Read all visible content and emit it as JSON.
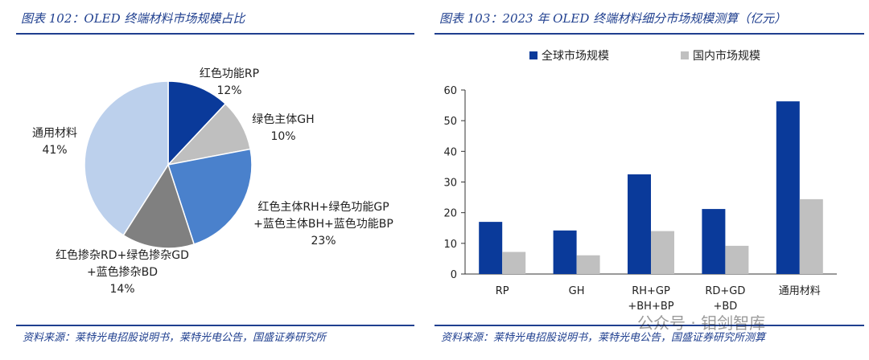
{
  "left": {
    "title": "图表 102：OLED 终端材料市场规模占比",
    "source": "资料来源：莱特光电招股说明书，莱特光电公告，国盛证券研究所"
  },
  "right": {
    "title": "图表 103：2023 年 OLED 终端材料细分市场规模测算（亿元）",
    "source": "资料来源：莱特光电招股说明书，莱特光电公告，国盛证券研究所测算"
  },
  "watermark": "公众号 · 钼剑智库",
  "chart_data": [
    {
      "type": "pie",
      "title": "OLED 终端材料市场规模占比",
      "slices": [
        {
          "label_lines": [
            "红色功能RP"
          ],
          "value": 12,
          "value_label": "12%",
          "color": "#0a3a9a"
        },
        {
          "label_lines": [
            "绿色主体GH"
          ],
          "value": 10,
          "value_label": "10%",
          "color": "#bfbfbf"
        },
        {
          "label_lines": [
            "红色主体RH+绿色功能GP",
            "+蓝色主体BH+蓝色功能BP"
          ],
          "value": 23,
          "value_label": "23%",
          "color": "#4a81cc"
        },
        {
          "label_lines": [
            "红色掺杂RD+绿色掺杂GD",
            "+蓝色掺杂BD"
          ],
          "value": 14,
          "value_label": "14%",
          "color": "#808080"
        },
        {
          "label_lines": [
            "通用材料"
          ],
          "value": 41,
          "value_label": "41%",
          "color": "#bcd0ec"
        }
      ]
    },
    {
      "type": "bar",
      "title": "2023 年 OLED 终端材料细分市场规模测算（亿元）",
      "categories": [
        [
          "RP"
        ],
        [
          "GH"
        ],
        [
          "RH+GP",
          "+BH+BP"
        ],
        [
          "RD+GD",
          "+BD"
        ],
        [
          "通用材料"
        ]
      ],
      "series": [
        {
          "name": "全球市场规模",
          "color": "#0a3a9a",
          "values": [
            17,
            14.2,
            32.5,
            21.2,
            56.3
          ]
        },
        {
          "name": "国内市场规模",
          "color": "#c0c0c0",
          "values": [
            7.2,
            6.1,
            14,
            9.2,
            24.4
          ]
        }
      ],
      "ylim": [
        0,
        60
      ],
      "yticks": [
        0,
        10,
        20,
        30,
        40,
        50,
        60
      ],
      "legend": "top",
      "grid": false
    }
  ]
}
